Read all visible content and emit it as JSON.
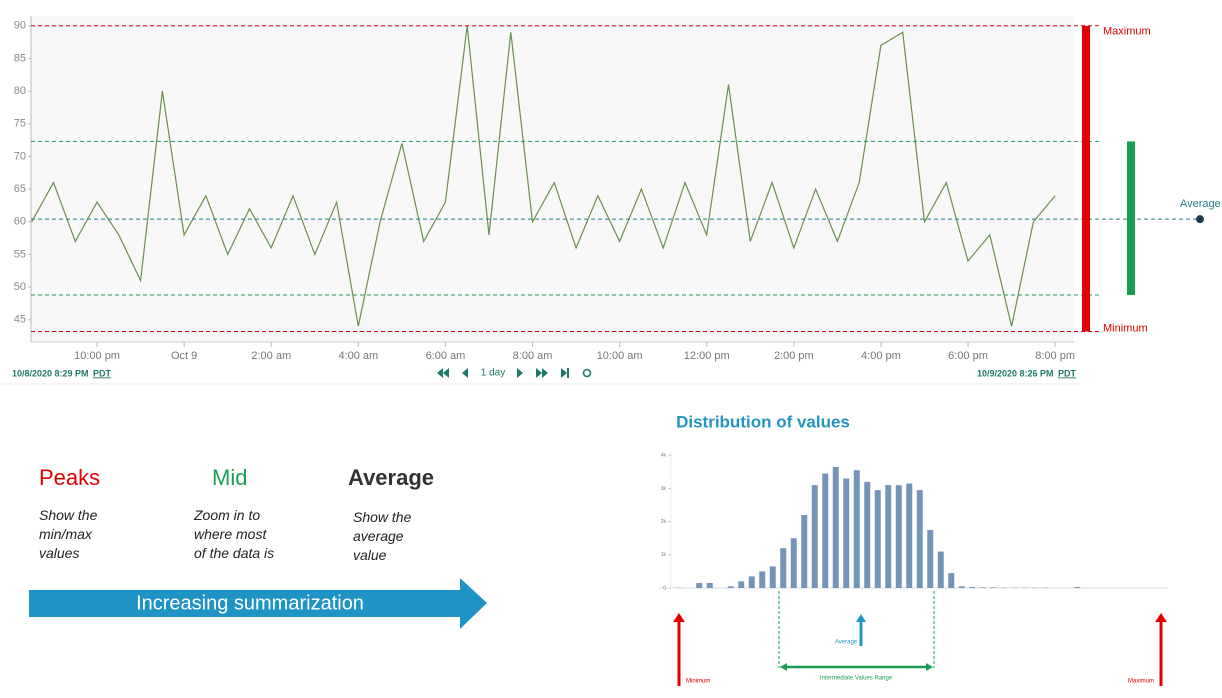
{
  "chart_data": [
    {
      "type": "line",
      "x": [
        "2020-10-08T20:30",
        "2020-10-08T21:00",
        "2020-10-08T21:30",
        "2020-10-08T22:00",
        "2020-10-08T22:30",
        "2020-10-08T23:00",
        "2020-10-08T23:30",
        "2020-10-09T00:00",
        "2020-10-09T00:30",
        "2020-10-09T01:00",
        "2020-10-09T01:30",
        "2020-10-09T02:00",
        "2020-10-09T02:30",
        "2020-10-09T03:00",
        "2020-10-09T03:30",
        "2020-10-09T04:00",
        "2020-10-09T04:30",
        "2020-10-09T05:00",
        "2020-10-09T05:30",
        "2020-10-09T06:00",
        "2020-10-09T06:30",
        "2020-10-09T07:00",
        "2020-10-09T07:30",
        "2020-10-09T08:00",
        "2020-10-09T08:30",
        "2020-10-09T09:00",
        "2020-10-09T09:30",
        "2020-10-09T10:00",
        "2020-10-09T10:30",
        "2020-10-09T11:00",
        "2020-10-09T11:30",
        "2020-10-09T12:00",
        "2020-10-09T12:30",
        "2020-10-09T13:00",
        "2020-10-09T13:30",
        "2020-10-09T14:00",
        "2020-10-09T14:30",
        "2020-10-09T15:00",
        "2020-10-09T15:30",
        "2020-10-09T16:00",
        "2020-10-09T16:30",
        "2020-10-09T17:00",
        "2020-10-09T17:30",
        "2020-10-09T18:00",
        "2020-10-09T18:30",
        "2020-10-09T19:00",
        "2020-10-09T19:30",
        "2020-10-09T20:00"
      ],
      "series": [
        {
          "color": "#6b8f4e",
          "values": [
            60,
            66,
            57,
            63,
            58,
            51,
            80,
            58,
            64,
            55,
            62,
            56,
            64,
            55,
            63,
            44,
            60,
            72,
            57,
            63,
            90,
            58,
            89,
            60,
            66,
            56,
            64,
            57,
            65,
            56,
            66,
            58,
            81,
            57,
            66,
            56,
            65,
            57,
            66,
            87,
            89,
            60,
            66,
            54,
            58,
            44,
            60,
            64
          ]
        }
      ],
      "xlim": [
        "2020-10-08T20:29",
        "2020-10-09T20:26"
      ],
      "xticks": [
        {
          "value": "2020-10-08T22:00",
          "label": "10:00 pm"
        },
        {
          "value": "2020-10-09T00:00",
          "label": "Oct 9"
        },
        {
          "value": "2020-10-09T02:00",
          "label": "2:00 am"
        },
        {
          "value": "2020-10-09T04:00",
          "label": "4:00 am"
        },
        {
          "value": "2020-10-09T06:00",
          "label": "6:00 am"
        },
        {
          "value": "2020-10-09T08:00",
          "label": "8:00 am"
        },
        {
          "value": "2020-10-09T10:00",
          "label": "10:00 am"
        },
        {
          "value": "2020-10-09T12:00",
          "label": "12:00 pm"
        },
        {
          "value": "2020-10-09T14:00",
          "label": "2:00 pm"
        },
        {
          "value": "2020-10-09T16:00",
          "label": "4:00 pm"
        },
        {
          "value": "2020-10-09T18:00",
          "label": "6:00 pm"
        },
        {
          "value": "2020-10-09T20:00",
          "label": "8:00 pm"
        }
      ],
      "ylim": [
        41.6,
        91.5
      ],
      "yticks": [
        45,
        50,
        55,
        60,
        65,
        70,
        75,
        80,
        85,
        90
      ],
      "reference_lines": [
        {
          "name": "Maximum",
          "value": 90,
          "color": "#e00000"
        },
        {
          "value": 72.3,
          "color": "#1a9e55"
        },
        {
          "name": "Average",
          "value": 60.4,
          "color": "#2a7d8a"
        },
        {
          "value": 48.8,
          "color": "#1a9e55"
        },
        {
          "name": "Minimum",
          "value": 43.2,
          "color": "#e00000"
        }
      ],
      "navigator": {
        "start": "10/8/2020 8:29 PM",
        "end": "10/9/2020 8:26 PM",
        "timezone": "PDT",
        "span": "1 day"
      }
    },
    {
      "type": "bar",
      "title": "Distribution of values",
      "categories": [
        null,
        null,
        null,
        null,
        null,
        null,
        null,
        null,
        null,
        null,
        null,
        null,
        null,
        null,
        null,
        null,
        null,
        null,
        null,
        null,
        null,
        null,
        null,
        null,
        null,
        null,
        null,
        null,
        null,
        null,
        null,
        null,
        null,
        null,
        null,
        null,
        null,
        null,
        null,
        null,
        null,
        null,
        null,
        null,
        null,
        null,
        null
      ],
      "values": [
        0.01,
        0,
        0.15,
        0.15,
        0,
        0.05,
        0.2,
        0.35,
        0.5,
        0.65,
        1.2,
        1.5,
        2.2,
        3.1,
        3.45,
        3.65,
        3.3,
        3.55,
        3.2,
        2.95,
        3.1,
        3.1,
        3.15,
        2.95,
        1.75,
        1.1,
        0.45,
        0.05,
        0.03,
        0.02,
        0.02,
        0.01,
        0.01,
        0.01,
        0.01,
        0.01,
        0,
        0,
        0.03,
        0,
        0,
        0,
        0,
        0,
        0,
        0,
        0
      ],
      "color": "#7393b7",
      "ylim": [
        0,
        4.1
      ],
      "yticks": [
        0,
        {
          "value": 1,
          "label": "1k"
        },
        {
          "value": 2,
          "label": "2k"
        },
        {
          "value": 3,
          "label": "3k"
        },
        {
          "value": 4,
          "label": "4k"
        }
      ],
      "annotations": {
        "minimum": "Minimum",
        "maximum": "Maximum",
        "average": "Average",
        "range": "Intermediate Values Range"
      }
    }
  ],
  "legend_items": [
    {
      "title": "Peaks",
      "color": "#e00000",
      "description": "Show the min/max values"
    },
    {
      "title": "Mid",
      "color": "#1a9e55",
      "description": "Zoom in to where most of the data is"
    },
    {
      "title": "Average",
      "color": "#333333",
      "description": "Show the average value"
    }
  ],
  "arrow_label": "Increasing summarization"
}
